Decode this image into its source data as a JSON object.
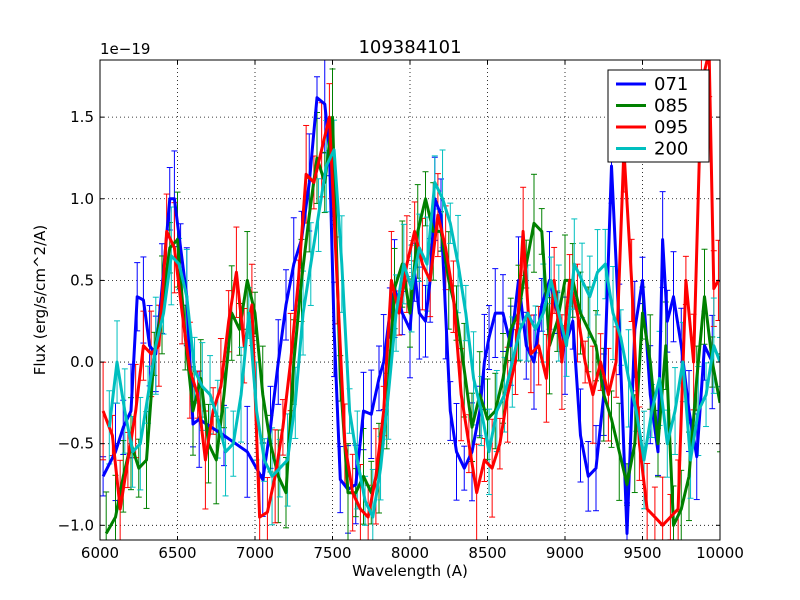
{
  "chart_data": {
    "type": "line",
    "title": "109384101",
    "xlabel": "Wavelength (A)",
    "ylabel": "Flux (erg/s/cm^2/A)",
    "offset_label": "1e−19",
    "xlim": [
      6000,
      10000
    ],
    "ylim": [
      -1.09,
      1.85
    ],
    "xticks": [
      6000,
      6500,
      7000,
      7500,
      8000,
      8500,
      9000,
      9500,
      10000
    ],
    "xtick_labels": [
      "6000",
      "6500",
      "7000",
      "7500",
      "8000",
      "8500",
      "9000",
      "9500",
      "10000"
    ],
    "yticks": [
      -1.0,
      -0.5,
      0.0,
      0.5,
      1.0,
      1.5
    ],
    "ytick_labels": [
      "−1.0",
      "−0.5",
      "0.0",
      "0.5",
      "1.0",
      "1.5"
    ],
    "grid": true,
    "legend_position": "top-right",
    "series": [
      {
        "name": "071",
        "color": "#0000ff",
        "x": [
          6020,
          6100,
          6150,
          6200,
          6240,
          6280,
          6320,
          6360,
          6400,
          6450,
          6480,
          6520,
          6560,
          6600,
          6640,
          6800,
          6950,
          7050,
          7100,
          7150,
          7200,
          7250,
          7300,
          7350,
          7400,
          7450,
          7480,
          7510,
          7550,
          7600,
          7650,
          7700,
          7750,
          7800,
          7830,
          7870,
          7900,
          7950,
          8000,
          8030,
          8060,
          8100,
          8130,
          8160,
          8200,
          8230,
          8260,
          8300,
          8350,
          8400,
          8450,
          8480,
          8510,
          8550,
          8600,
          8650,
          8700,
          8750,
          8800,
          8850,
          8900,
          8950,
          9000,
          9050,
          9100,
          9150,
          9200,
          9250,
          9300,
          9350,
          9400,
          9450,
          9500,
          9550,
          9600,
          9630,
          9660,
          9700,
          9750,
          9800,
          9850,
          9900,
          9950
        ],
        "y": [
          -0.7,
          -0.55,
          -0.4,
          -0.3,
          0.4,
          0.38,
          0.1,
          0.05,
          0.45,
          1.0,
          1.0,
          0.7,
          0.4,
          -0.38,
          -0.35,
          -0.45,
          -0.55,
          -0.72,
          -0.4,
          0.0,
          0.35,
          0.6,
          0.75,
          1.1,
          1.62,
          1.58,
          1.3,
          0.2,
          -0.72,
          -0.78,
          -0.75,
          -0.3,
          -0.32,
          -0.1,
          0.0,
          0.3,
          0.45,
          0.3,
          0.2,
          0.55,
          0.3,
          0.25,
          0.5,
          1.0,
          0.9,
          0.3,
          -0.3,
          -0.55,
          -0.65,
          -0.55,
          -0.3,
          0.0,
          0.15,
          0.3,
          0.3,
          0.1,
          0.5,
          0.1,
          0.0,
          0.35,
          0.5,
          0.3,
          0.1,
          0.25,
          -0.45,
          -0.7,
          -0.65,
          -0.2,
          1.2,
          0.2,
          -1.05,
          0.2,
          0.5,
          -0.2,
          -0.55,
          0.75,
          0.25,
          0.4,
          0.1,
          -0.3,
          -0.58,
          0.1,
          0.0
        ]
      },
      {
        "name": "085",
        "color": "#008000",
        "x": [
          6040,
          6100,
          6150,
          6200,
          6250,
          6300,
          6350,
          6400,
          6450,
          6500,
          6550,
          6600,
          6650,
          6700,
          6750,
          6800,
          6850,
          6900,
          6950,
          7000,
          7050,
          7100,
          7150,
          7200,
          7250,
          7300,
          7350,
          7400,
          7450,
          7500,
          7550,
          7600,
          7650,
          7700,
          7750,
          7800,
          7850,
          7900,
          7950,
          8000,
          8050,
          8100,
          8150,
          8200,
          8250,
          8300,
          8350,
          8400,
          8450,
          8500,
          8550,
          8600,
          8650,
          8700,
          8750,
          8800,
          8850,
          8900,
          8950,
          9000,
          9050,
          9100,
          9150,
          9200,
          9250,
          9300,
          9350,
          9400,
          9450,
          9500,
          9550,
          9600,
          9650,
          9700,
          9750,
          9800,
          9850,
          9900,
          9950,
          10000
        ],
        "y": [
          -1.05,
          -0.95,
          -0.7,
          -0.5,
          -0.65,
          -0.6,
          0.05,
          0.35,
          0.7,
          0.75,
          0.15,
          -0.3,
          -0.1,
          -0.5,
          -0.6,
          -0.2,
          0.3,
          0.2,
          0.5,
          0.3,
          -0.2,
          -0.5,
          -0.7,
          -0.8,
          0.0,
          0.5,
          0.9,
          1.25,
          1.1,
          1.5,
          -0.1,
          -0.8,
          -0.8,
          -0.7,
          -0.8,
          -0.65,
          -0.3,
          0.45,
          0.6,
          0.3,
          0.8,
          1.0,
          0.8,
          0.8,
          0.5,
          0.3,
          -0.05,
          -0.4,
          -0.2,
          -0.35,
          -0.3,
          -0.1,
          0.2,
          0.3,
          0.6,
          0.85,
          0.8,
          0.1,
          0.25,
          0.5,
          0.5,
          0.3,
          0.2,
          0.1,
          -0.2,
          -0.35,
          -0.55,
          -0.75,
          -0.5,
          0.3,
          0.0,
          -0.5,
          0.1,
          -1.0,
          -0.9,
          -0.7,
          -0.1,
          0.4,
          0.0,
          -0.25
        ]
      },
      {
        "name": "095",
        "color": "#ff0000",
        "x": [
          6020,
          6080,
          6130,
          6180,
          6230,
          6280,
          6330,
          6380,
          6430,
          6480,
          6530,
          6580,
          6630,
          6680,
          6730,
          6780,
          6830,
          6880,
          6930,
          6980,
          7030,
          7080,
          7130,
          7180,
          7230,
          7280,
          7330,
          7380,
          7430,
          7480,
          7530,
          7580,
          7630,
          7680,
          7730,
          7780,
          7830,
          7880,
          7930,
          7980,
          8030,
          8080,
          8130,
          8180,
          8230,
          8280,
          8330,
          8380,
          8430,
          8480,
          8530,
          8580,
          8630,
          8680,
          8730,
          8780,
          8830,
          8880,
          8930,
          8980,
          9030,
          9080,
          9130,
          9180,
          9230,
          9280,
          9330,
          9380,
          9430,
          9480,
          9530,
          9580,
          9630,
          9680,
          9730,
          9780,
          9830,
          9880,
          9930,
          9960,
          9990
        ],
        "y": [
          -0.3,
          -0.45,
          -0.9,
          -0.6,
          -0.3,
          0.1,
          0.05,
          0.1,
          0.8,
          0.7,
          0.3,
          -0.05,
          -0.2,
          -0.6,
          -0.3,
          -0.15,
          0.25,
          0.55,
          0.1,
          0.35,
          -0.95,
          -0.92,
          -0.7,
          -0.4,
          0.0,
          0.5,
          1.15,
          1.1,
          1.3,
          1.5,
          0.5,
          -0.5,
          -0.8,
          -0.9,
          -0.95,
          -0.7,
          -0.3,
          0.5,
          0.3,
          0.6,
          0.8,
          0.6,
          0.5,
          0.9,
          0.7,
          0.4,
          -0.2,
          -0.5,
          -0.8,
          -0.6,
          -0.65,
          -0.5,
          -0.2,
          0.0,
          0.8,
          0.05,
          0.1,
          -0.1,
          0.5,
          0.0,
          0.5,
          0.3,
          0.0,
          -0.2,
          0.0,
          -0.2,
          0.0,
          1.3,
          0.5,
          -0.5,
          -0.9,
          -0.95,
          -1.0,
          -0.95,
          -0.9,
          0.5,
          0.0,
          1.7,
          1.9,
          0.45,
          0.5
        ]
      },
      {
        "name": "200",
        "color": "#00bfbf",
        "x": [
          6060,
          6110,
          6160,
          6210,
          6260,
          6310,
          6360,
          6410,
          6460,
          6510,
          6560,
          6610,
          6660,
          6710,
          6760,
          6810,
          6860,
          6910,
          6960,
          7010,
          7060,
          7110,
          7160,
          7210,
          7260,
          7310,
          7360,
          7410,
          7460,
          7510,
          7560,
          7610,
          7660,
          7710,
          7760,
          7810,
          7860,
          7910,
          7960,
          8010,
          8060,
          8110,
          8160,
          8210,
          8260,
          8310,
          8360,
          8410,
          8460,
          8510,
          8560,
          8610,
          8660,
          8710,
          8760,
          8810,
          8860,
          8910,
          8960,
          9010,
          9060,
          9110,
          9160,
          9210,
          9260,
          9310,
          9360,
          9410,
          9460,
          9510,
          9560,
          9610,
          9660,
          9710,
          9760,
          9810,
          9860,
          9910,
          9960,
          10000
        ],
        "y": [
          -0.4,
          0.0,
          -0.3,
          -0.55,
          -0.5,
          -0.2,
          0.1,
          0.3,
          0.65,
          0.6,
          0.4,
          -0.05,
          -0.15,
          -0.2,
          -0.35,
          -0.55,
          -0.5,
          -0.2,
          0.3,
          -0.3,
          -0.6,
          -0.7,
          -0.65,
          -0.6,
          -0.25,
          0.3,
          0.6,
          0.9,
          1.2,
          1.3,
          0.6,
          -0.3,
          -0.6,
          -0.85,
          -0.95,
          -0.65,
          -0.2,
          0.3,
          0.6,
          0.45,
          0.7,
          0.6,
          1.1,
          1.0,
          0.85,
          0.6,
          0.3,
          -0.1,
          -0.3,
          -0.55,
          -0.3,
          -0.2,
          0.0,
          0.2,
          0.3,
          0.2,
          0.3,
          0.5,
          0.3,
          0.1,
          0.6,
          0.5,
          0.4,
          0.55,
          0.6,
          0.3,
          0.15,
          -0.1,
          -0.3,
          -0.6,
          -0.3,
          -0.1,
          -0.5,
          -0.3,
          0.0,
          -0.6,
          -0.3,
          -0.2,
          0.1,
          0.0
        ]
      }
    ]
  }
}
